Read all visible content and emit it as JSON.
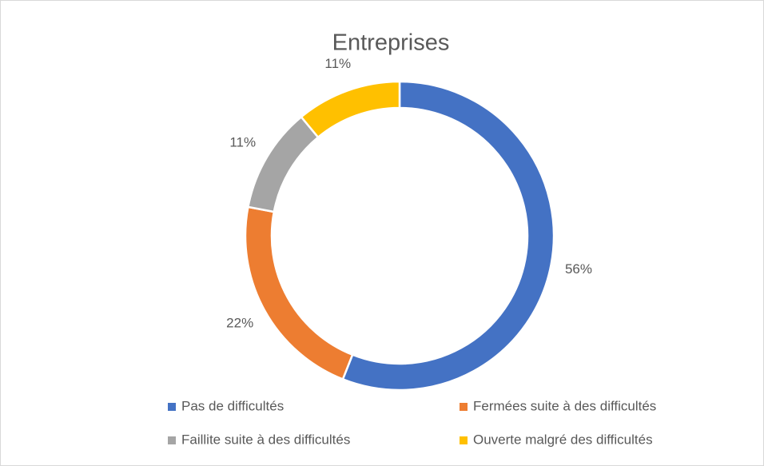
{
  "chart_data": {
    "type": "donut",
    "title": "Entreprises",
    "categories": [
      "Pas de difficultés",
      "Fermées suite à des difficultés",
      "Faillite suite à des difficultés",
      "Ouverte malgré des difficultés"
    ],
    "values": [
      56,
      22,
      11,
      11
    ],
    "value_labels": [
      "56%",
      "22%",
      "11%",
      "11%"
    ],
    "colors": [
      "#4472c4",
      "#ed7d31",
      "#a5a5a5",
      "#ffc000"
    ],
    "legend": "bottom"
  }
}
